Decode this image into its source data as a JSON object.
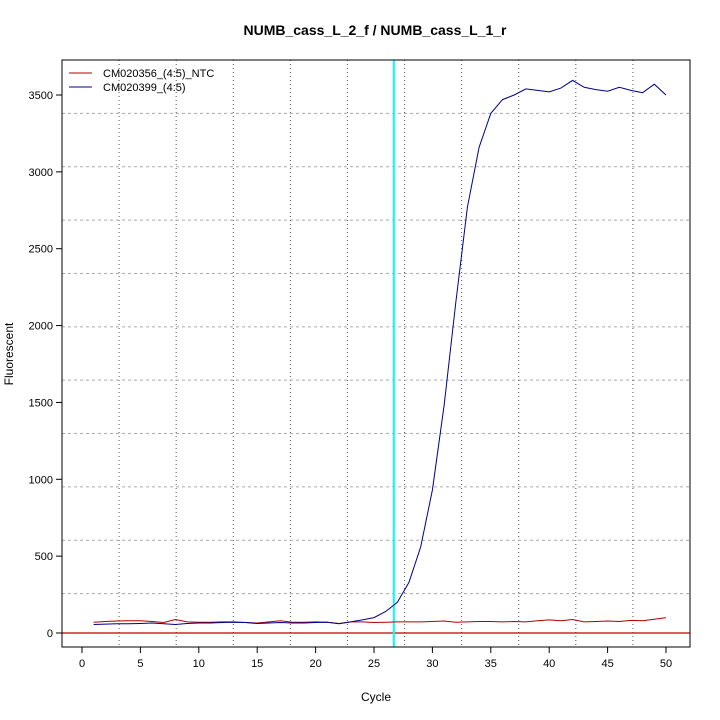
{
  "chart_data": {
    "type": "line",
    "title": "NUMB_cass_L_2_f / NUMB_cass_L_1_r",
    "xlabel": "Cycle",
    "ylabel": "Fluorescent",
    "xlim": [
      -2,
      52
    ],
    "ylim": [
      -90,
      3740
    ],
    "xticks": [
      0,
      5,
      10,
      15,
      20,
      25,
      30,
      35,
      40,
      45,
      50
    ],
    "yticks": [
      0,
      500,
      1000,
      1500,
      2000,
      2500,
      3000,
      3500
    ],
    "grid": true,
    "legend_position": "top-left",
    "threshold_cycle": 26.7,
    "threshold_color": "#00ffff",
    "baseline_value": 0,
    "baseline_color": "#c00000",
    "x": [
      1,
      2,
      3,
      4,
      5,
      6,
      7,
      8,
      9,
      10,
      11,
      12,
      13,
      14,
      15,
      16,
      17,
      18,
      19,
      20,
      21,
      22,
      23,
      24,
      25,
      26,
      27,
      28,
      29,
      30,
      31,
      32,
      33,
      34,
      35,
      36,
      37,
      38,
      39,
      40,
      41,
      42,
      43,
      44,
      45,
      46,
      47,
      48,
      49,
      50
    ],
    "series": [
      {
        "name": "CM020356_(4:5)_NTC",
        "color": "#b00000",
        "values": [
          70,
          75,
          78,
          80,
          80,
          75,
          68,
          88,
          72,
          70,
          70,
          72,
          72,
          68,
          65,
          72,
          80,
          70,
          70,
          72,
          70,
          62,
          72,
          72,
          68,
          70,
          72,
          72,
          72,
          75,
          78,
          70,
          72,
          75,
          75,
          72,
          75,
          72,
          80,
          85,
          80,
          88,
          72,
          75,
          78,
          75,
          82,
          80,
          90,
          100
        ]
      },
      {
        "name": "CM020399_(4:5)",
        "color": "#00008b",
        "values": [
          55,
          58,
          60,
          60,
          62,
          65,
          60,
          55,
          62,
          65,
          65,
          68,
          70,
          68,
          62,
          65,
          68,
          65,
          65,
          68,
          70,
          60,
          72,
          85,
          100,
          140,
          200,
          330,
          560,
          930,
          1480,
          2150,
          2770,
          3160,
          3380,
          3470,
          3500,
          3540,
          3530,
          3520,
          3545,
          3595,
          3550,
          3535,
          3525,
          3550,
          3530,
          3515,
          3570,
          3500
        ]
      }
    ]
  }
}
